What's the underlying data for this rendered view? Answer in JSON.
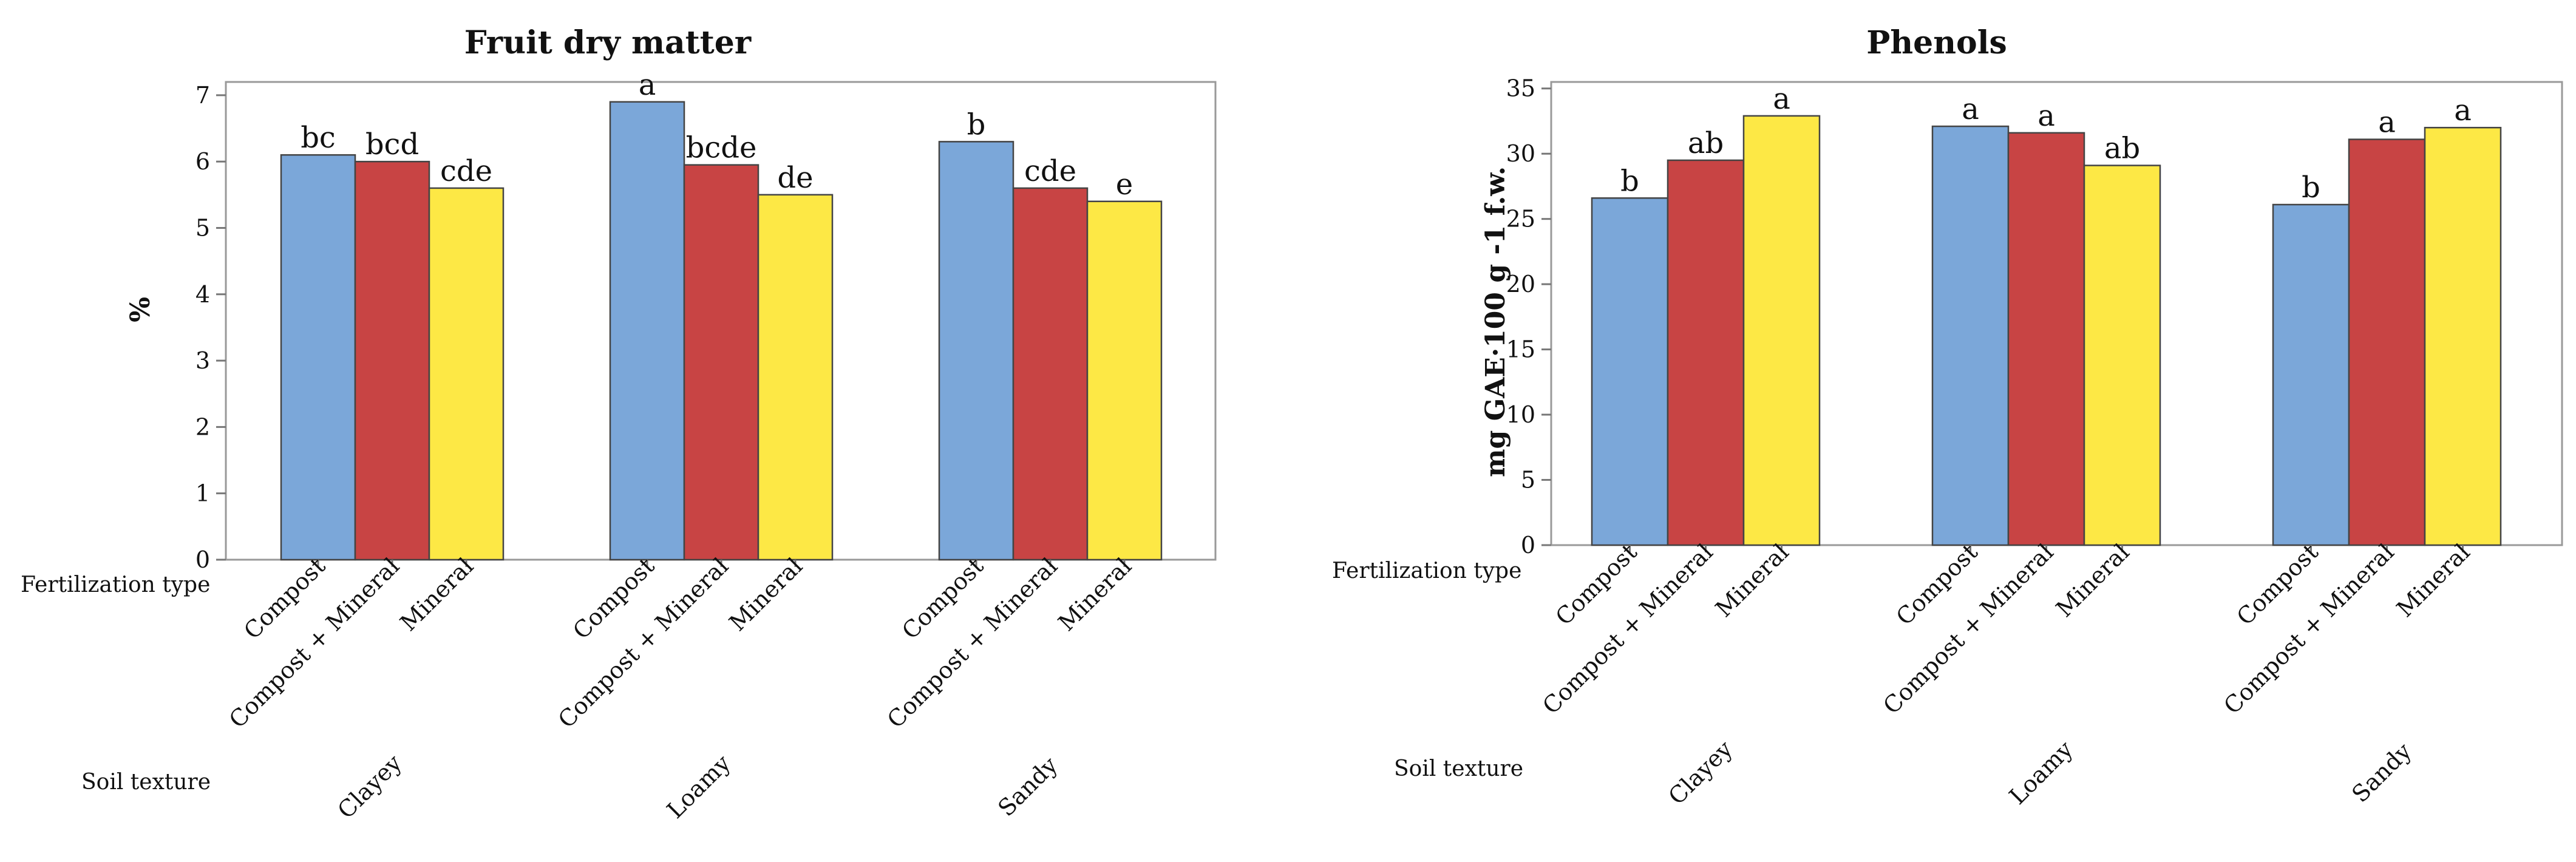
{
  "row_labels": {
    "fertilization": "Fertilization type",
    "soil": "Soil texture"
  },
  "treatments": [
    "Compost",
    "Compost + Mineral",
    "Mineral"
  ],
  "soils": [
    "Clayey",
    "Loamy",
    "Sandy"
  ],
  "colors": {
    "Compost": "#7ba7d9",
    "Compost + Mineral": "#c84444",
    "Mineral": "#fde845"
  },
  "chart_data": [
    {
      "type": "bar",
      "title": "Fruit dry matter",
      "ylabel": "%",
      "xlabel": "",
      "ylim": [
        0,
        7.2
      ],
      "yticks": [
        0,
        1,
        2,
        3,
        4,
        5,
        6,
        7
      ],
      "categories": [
        "Clayey",
        "Loamy",
        "Sandy"
      ],
      "series": [
        {
          "name": "Compost",
          "values": [
            6.1,
            6.9,
            6.3
          ],
          "labels": [
            "bc",
            "a",
            "b"
          ]
        },
        {
          "name": "Compost + Mineral",
          "values": [
            6.0,
            5.95,
            5.6
          ],
          "labels": [
            "bcd",
            "bcde",
            "cde"
          ]
        },
        {
          "name": "Mineral",
          "values": [
            5.6,
            5.5,
            5.4
          ],
          "labels": [
            "cde",
            "de",
            "e"
          ]
        }
      ]
    },
    {
      "type": "bar",
      "title": "Phenols",
      "ylabel": "mg GAE·100 g -1 f.w.",
      "xlabel": "",
      "ylim": [
        0,
        35.5
      ],
      "yticks": [
        0,
        5,
        10,
        15,
        20,
        25,
        30,
        35
      ],
      "categories": [
        "Clayey",
        "Loamy",
        "Sandy"
      ],
      "series": [
        {
          "name": "Compost",
          "values": [
            26.6,
            32.1,
            26.1
          ],
          "labels": [
            "b",
            "a",
            "b"
          ]
        },
        {
          "name": "Compost + Mineral",
          "values": [
            29.5,
            31.6,
            31.1
          ],
          "labels": [
            "ab",
            "a",
            "a"
          ]
        },
        {
          "name": "Mineral",
          "values": [
            32.9,
            29.1,
            32.0
          ],
          "labels": [
            "a",
            "ab",
            "a"
          ]
        }
      ]
    }
  ]
}
